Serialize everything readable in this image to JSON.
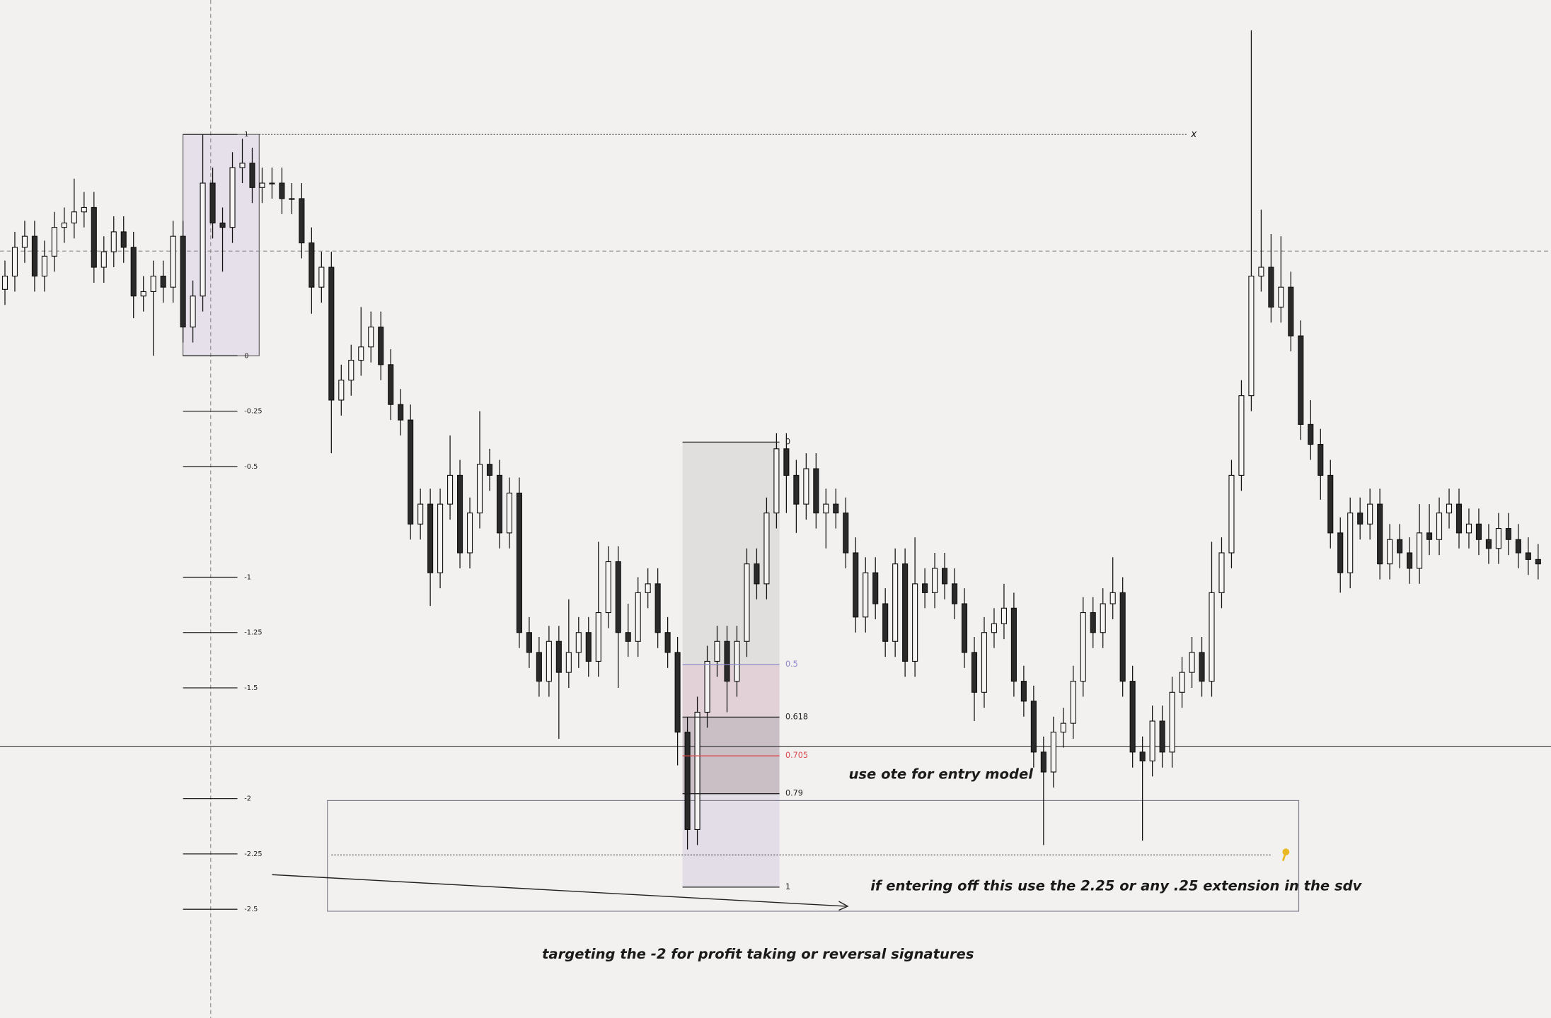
{
  "chart_data": {
    "type": "candlestick",
    "ylim": [
      -2.991,
      1.607
    ],
    "colors": {
      "up": "#f6f5f3",
      "down": "#2a2a2a",
      "wick": "#111111",
      "box": "#e6e0ea"
    },
    "series": {
      "open": [
        0.3,
        0.36,
        0.49,
        0.54,
        0.36,
        0.45,
        0.58,
        0.6,
        0.65,
        0.67,
        0.4,
        0.47,
        0.56,
        0.49,
        0.27,
        0.29,
        0.36,
        0.31,
        0.54,
        0.13,
        0.27,
        0.78,
        0.6,
        0.58,
        0.85,
        0.87,
        0.76,
        0.78,
        0.78,
        0.71,
        0.71,
        0.51,
        0.31,
        0.4,
        -0.2,
        -0.11,
        -0.02,
        0.04,
        0.13,
        -0.04,
        -0.22,
        -0.29,
        -0.76,
        -0.67,
        -0.98,
        -0.67,
        -0.54,
        -0.89,
        -0.71,
        -0.49,
        -0.54,
        -0.8,
        -0.62,
        -1.25,
        -1.34,
        -1.47,
        -1.29,
        -1.43,
        -1.34,
        -1.25,
        -1.38,
        -1.16,
        -0.93,
        -1.25,
        -1.29,
        -1.07,
        -1.03,
        -1.25,
        -1.34,
        -1.7,
        -2.14,
        -1.61,
        -1.38,
        -1.29,
        -1.47,
        -1.29,
        -0.94,
        -1.03,
        -0.71,
        -0.42,
        -0.54,
        -0.67,
        -0.51,
        -0.71,
        -0.67,
        -0.71,
        -0.89,
        -1.18,
        -0.98,
        -1.12,
        -1.29,
        -0.94,
        -1.38,
        -1.03,
        -1.07,
        -0.96,
        -1.03,
        -1.12,
        -1.34,
        -1.52,
        -1.25,
        -1.21,
        -1.14,
        -1.47,
        -1.56,
        -1.79,
        -1.88,
        -1.7,
        -1.66,
        -1.47,
        -1.16,
        -1.25,
        -1.12,
        -1.07,
        -1.47,
        -1.79,
        -1.83,
        -1.65,
        -1.79,
        -1.52,
        -1.43,
        -1.34,
        -1.47,
        -1.07,
        -0.89,
        -0.54,
        -0.18,
        0.36,
        0.4,
        0.22,
        0.31,
        0.09,
        -0.31,
        -0.4,
        -0.54,
        -0.8,
        -0.98,
        -0.71,
        -0.76,
        -0.67,
        -0.94,
        -0.83,
        -0.89,
        -0.96,
        -0.8,
        -0.83,
        -0.71,
        -0.67,
        -0.8,
        -0.76,
        -0.83,
        -0.87,
        -0.78,
        -0.83,
        -0.89,
        -0.92
      ],
      "high": [
        0.43,
        0.56,
        0.61,
        0.61,
        0.52,
        0.65,
        0.67,
        0.8,
        0.74,
        0.74,
        0.54,
        0.63,
        0.63,
        0.56,
        0.36,
        0.43,
        0.43,
        0.61,
        0.61,
        0.34,
        1.0,
        0.85,
        0.67,
        0.92,
        0.98,
        0.94,
        0.85,
        0.85,
        0.85,
        0.78,
        0.78,
        0.58,
        0.47,
        0.47,
        -0.04,
        0.05,
        0.22,
        0.2,
        0.2,
        0.03,
        -0.15,
        -0.22,
        -0.6,
        -0.6,
        -0.6,
        -0.36,
        -0.47,
        -0.64,
        -0.25,
        -0.42,
        -0.47,
        -0.55,
        -0.55,
        -1.18,
        -1.27,
        -1.22,
        -1.22,
        -1.1,
        -1.18,
        -1.18,
        -0.84,
        -0.86,
        -0.86,
        -1.12,
        -1.0,
        -0.96,
        -0.96,
        -1.18,
        -1.27,
        -1.63,
        -1.54,
        -1.31,
        -1.22,
        -1.22,
        -1.22,
        -0.87,
        -0.87,
        -0.64,
        -0.35,
        -0.35,
        -0.47,
        -0.44,
        -0.44,
        -0.6,
        -0.6,
        -0.64,
        -0.82,
        -0.91,
        -0.91,
        -1.05,
        -0.87,
        -0.87,
        -0.82,
        -0.96,
        -0.89,
        -0.89,
        -0.96,
        -1.05,
        -1.27,
        -1.18,
        -1.14,
        -1.03,
        -1.07,
        -1.4,
        -1.49,
        -1.72,
        -1.63,
        -1.59,
        -1.4,
        -1.09,
        -1.09,
        -1.05,
        -0.91,
        -1.0,
        -1.4,
        -1.72,
        -1.58,
        -1.58,
        -1.45,
        -1.36,
        -1.27,
        -1.27,
        -0.84,
        -0.82,
        -0.47,
        -0.11,
        1.47,
        0.66,
        0.55,
        0.54,
        0.38,
        0.16,
        -0.2,
        -0.33,
        -0.47,
        -0.73,
        -0.64,
        -0.64,
        -0.6,
        -0.6,
        -0.76,
        -0.76,
        -0.82,
        -0.67,
        -0.67,
        -0.64,
        -0.6,
        -0.6,
        -0.69,
        -0.69,
        -0.76,
        -0.71,
        -0.71,
        -0.76,
        -0.82,
        -0.85
      ],
      "low": [
        0.23,
        0.29,
        0.42,
        0.29,
        0.29,
        0.38,
        0.51,
        0.53,
        0.58,
        0.33,
        0.33,
        0.4,
        0.42,
        0.17,
        0.2,
        0.0,
        0.24,
        0.24,
        0.06,
        0.06,
        0.2,
        0.53,
        0.38,
        0.51,
        0.78,
        0.69,
        0.69,
        0.71,
        0.64,
        0.64,
        0.44,
        0.19,
        0.24,
        -0.44,
        -0.27,
        -0.18,
        -0.09,
        -0.03,
        -0.11,
        -0.29,
        -0.36,
        -0.83,
        -0.83,
        -1.13,
        -1.05,
        -0.74,
        -0.96,
        -0.96,
        -0.78,
        -0.61,
        -0.87,
        -0.87,
        -1.32,
        -1.41,
        -1.54,
        -1.54,
        -1.73,
        -1.5,
        -1.41,
        -1.45,
        -1.45,
        -1.23,
        -1.5,
        -1.36,
        -1.36,
        -1.14,
        -1.32,
        -1.41,
        -1.85,
        -2.23,
        -2.21,
        -1.68,
        -1.45,
        -1.61,
        -1.54,
        -1.36,
        -1.1,
        -1.1,
        -0.78,
        -0.71,
        -0.8,
        -0.74,
        -0.78,
        -0.87,
        -0.78,
        -0.96,
        -1.25,
        -1.25,
        -1.19,
        -1.36,
        -1.36,
        -1.45,
        -1.45,
        -1.14,
        -1.14,
        -1.1,
        -1.19,
        -1.41,
        -1.65,
        -1.59,
        -1.32,
        -1.28,
        -1.54,
        -1.63,
        -1.86,
        -2.21,
        -1.95,
        -1.77,
        -1.73,
        -1.54,
        -1.32,
        -1.32,
        -1.19,
        -1.54,
        -1.86,
        -2.19,
        -1.9,
        -1.86,
        -1.86,
        -1.59,
        -1.5,
        -1.54,
        -1.54,
        -1.14,
        -0.96,
        -0.61,
        -0.25,
        0.29,
        0.15,
        0.15,
        0.02,
        -0.38,
        -0.47,
        -0.65,
        -0.87,
        -1.07,
        -1.05,
        -0.83,
        -0.83,
        -1.01,
        -1.01,
        -0.96,
        -1.03,
        -1.03,
        -0.9,
        -0.9,
        -0.78,
        -0.87,
        -0.87,
        -0.9,
        -0.94,
        -0.94,
        -0.9,
        -0.96,
        -0.99,
        -1.01
      ],
      "close": [
        0.36,
        0.49,
        0.54,
        0.36,
        0.45,
        0.58,
        0.6,
        0.65,
        0.67,
        0.4,
        0.47,
        0.56,
        0.49,
        0.27,
        0.29,
        0.36,
        0.31,
        0.54,
        0.13,
        0.27,
        0.78,
        0.6,
        0.58,
        0.85,
        0.87,
        0.76,
        0.78,
        0.78,
        0.71,
        0.71,
        0.51,
        0.31,
        0.4,
        -0.2,
        -0.11,
        -0.02,
        0.04,
        0.13,
        -0.04,
        -0.22,
        -0.29,
        -0.76,
        -0.67,
        -0.98,
        -0.67,
        -0.54,
        -0.89,
        -0.71,
        -0.49,
        -0.54,
        -0.8,
        -0.62,
        -1.25,
        -1.34,
        -1.47,
        -1.29,
        -1.43,
        -1.34,
        -1.25,
        -1.38,
        -1.16,
        -0.93,
        -1.25,
        -1.29,
        -1.07,
        -1.03,
        -1.25,
        -1.34,
        -1.7,
        -2.14,
        -1.61,
        -1.38,
        -1.29,
        -1.47,
        -1.29,
        -0.94,
        -1.03,
        -0.71,
        -0.42,
        -0.54,
        -0.67,
        -0.51,
        -0.71,
        -0.67,
        -0.71,
        -0.89,
        -1.18,
        -0.98,
        -1.12,
        -1.29,
        -0.94,
        -1.38,
        -1.03,
        -1.07,
        -0.96,
        -1.03,
        -1.12,
        -1.34,
        -1.52,
        -1.25,
        -1.21,
        -1.14,
        -1.47,
        -1.56,
        -1.79,
        -1.88,
        -1.7,
        -1.66,
        -1.47,
        -1.16,
        -1.25,
        -1.12,
        -1.07,
        -1.47,
        -1.79,
        -1.83,
        -1.65,
        -1.79,
        -1.52,
        -1.43,
        -1.34,
        -1.47,
        -1.07,
        -0.89,
        -0.54,
        -0.18,
        0.36,
        0.4,
        0.22,
        0.31,
        0.09,
        -0.31,
        -0.4,
        -0.54,
        -0.8,
        -0.98,
        -0.71,
        -0.76,
        -0.67,
        -0.94,
        -0.83,
        -0.89,
        -0.96,
        -0.8,
        -0.83,
        -0.71,
        -0.67,
        -0.8,
        -0.76,
        -0.83,
        -0.87,
        -0.78,
        -0.83,
        -0.89,
        -0.92,
        -0.94
      ]
    },
    "fibs": [
      {
        "anchors": [
          0,
          1
        ],
        "color": "#222222",
        "levels": [
          1,
          0,
          -0.25,
          -0.5,
          -1,
          -1.25,
          -1.5,
          -2,
          -2.25,
          -2.5
        ]
      },
      {
        "anchors": [
          -0.39,
          -2.4
        ],
        "levels": [
          0,
          0.5,
          0.618,
          0.705,
          0.79,
          1
        ],
        "level_colors": [
          "#222222",
          "#8c86c9",
          "#222222",
          "#d9474f",
          "#222222",
          "#222222"
        ]
      }
    ],
    "annotations": [
      "x",
      "use ote for entry model",
      "if entering off this use the 2.25 or any .25 extension in the sdv",
      "targeting the -2 for profit taking or reversal signatures"
    ]
  }
}
